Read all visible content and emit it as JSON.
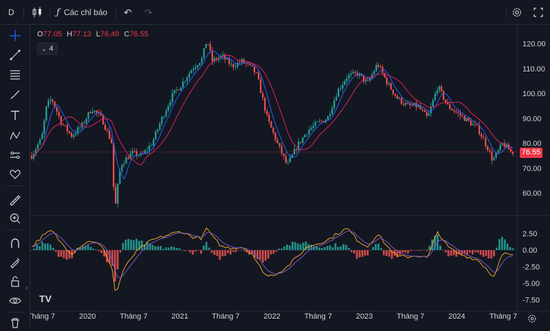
{
  "toolbar": {
    "interval": "D",
    "indicators_label": "Các chỉ báo"
  },
  "legend": {
    "o_label": "O",
    "o_value": "77.05",
    "h_label": "H",
    "h_value": "77.13",
    "l_label": "L",
    "l_value": "76.49",
    "c_label": "C",
    "c_value": "76.55",
    "indicator_count": "4"
  },
  "last_price": "76.55",
  "logo_text": "TV",
  "left_tools": [
    "crosshair-icon",
    "trendline-icon",
    "fib-icon",
    "brush-icon",
    "text-icon",
    "pattern-icon",
    "measure-icon",
    "heart-icon",
    "ruler-icon",
    "zoom-in-icon",
    "magnet-icon",
    "drawing-lock-icon",
    "lock-icon",
    "eye-icon",
    "trash-icon"
  ],
  "colors": {
    "up": "#26a69a",
    "down": "#ef5350",
    "ma_fast": "#2962ff",
    "ma_slow": "#e91e63",
    "macd": "#f5a623",
    "signal": "#7e57c2",
    "badge": "#f23645"
  },
  "chart_data": {
    "type": "candlestick",
    "price_axis": {
      "ticks": [
        "120.00",
        "110.00",
        "100.00",
        "90.00",
        "80.00",
        "70.00",
        "60.00"
      ],
      "tick_values": [
        120,
        110,
        100,
        90,
        80,
        70,
        60
      ],
      "range": [
        52,
        126
      ]
    },
    "macd_axis": {
      "ticks": [
        "2.50",
        "0.00",
        "-2.50",
        "-5.00",
        "-7.50"
      ],
      "tick_values": [
        2.5,
        0,
        -2.5,
        -5,
        -7.5
      ],
      "range": [
        -8.7,
        4.8
      ]
    },
    "time_axis": [
      "Tháng 7",
      "2020",
      "Tháng 7",
      "2021",
      "Tháng 7",
      "2022",
      "Tháng 7",
      "2023",
      "Tháng 7",
      "2024",
      "Tháng 7"
    ],
    "time_axis_pos": [
      0,
      0.143,
      0.286,
      0.429,
      0.571,
      0.714,
      0.857,
      1.0,
      1.143,
      1.286,
      1.43
    ],
    "price_path": [
      [
        0,
        75
      ],
      [
        0.1,
        82
      ],
      [
        0.15,
        95
      ],
      [
        0.2,
        98
      ],
      [
        0.3,
        88
      ],
      [
        0.4,
        83
      ],
      [
        0.5,
        87
      ],
      [
        0.6,
        94
      ],
      [
        0.7,
        90
      ],
      [
        0.8,
        80
      ],
      [
        0.82,
        60
      ],
      [
        0.84,
        55
      ],
      [
        0.87,
        67
      ],
      [
        0.9,
        72
      ],
      [
        1.0,
        76
      ],
      [
        1.1,
        75
      ],
      [
        1.2,
        80
      ],
      [
        1.3,
        90
      ],
      [
        1.4,
        99
      ],
      [
        1.5,
        104
      ],
      [
        1.6,
        110
      ],
      [
        1.7,
        114
      ],
      [
        1.75,
        122
      ],
      [
        1.8,
        113
      ],
      [
        1.9,
        115
      ],
      [
        2.0,
        111
      ],
      [
        2.1,
        113
      ],
      [
        2.2,
        110
      ],
      [
        2.25,
        107
      ],
      [
        2.35,
        90
      ],
      [
        2.45,
        80
      ],
      [
        2.55,
        71
      ],
      [
        2.65,
        79
      ],
      [
        2.75,
        85
      ],
      [
        2.85,
        88
      ],
      [
        2.95,
        90
      ],
      [
        3.05,
        101
      ],
      [
        3.15,
        107
      ],
      [
        3.25,
        108
      ],
      [
        3.35,
        104
      ],
      [
        3.45,
        112
      ],
      [
        3.55,
        104
      ],
      [
        3.65,
        98
      ],
      [
        3.75,
        95
      ],
      [
        3.85,
        95
      ],
      [
        3.95,
        90
      ],
      [
        4.05,
        103
      ],
      [
        4.15,
        95
      ],
      [
        4.25,
        92
      ],
      [
        4.35,
        89
      ],
      [
        4.45,
        86
      ],
      [
        4.55,
        78
      ],
      [
        4.6,
        73
      ],
      [
        4.7,
        80
      ],
      [
        4.78,
        76.5
      ]
    ],
    "x_range": [
      0,
      4.8
    ],
    "macd_path": [
      [
        0,
        0.5
      ],
      [
        0.1,
        2.0
      ],
      [
        0.2,
        3.0
      ],
      [
        0.3,
        1.0
      ],
      [
        0.4,
        -0.5
      ],
      [
        0.5,
        0.8
      ],
      [
        0.6,
        1.5
      ],
      [
        0.7,
        0.5
      ],
      [
        0.8,
        -2.5
      ],
      [
        0.84,
        -7.0
      ],
      [
        0.9,
        -3.5
      ],
      [
        1.0,
        -1.0
      ],
      [
        1.1,
        0.5
      ],
      [
        1.2,
        1.5
      ],
      [
        1.3,
        2.0
      ],
      [
        1.4,
        2.5
      ],
      [
        1.5,
        2.8
      ],
      [
        1.6,
        2.0
      ],
      [
        1.7,
        1.8
      ],
      [
        1.75,
        3.5
      ],
      [
        1.8,
        2.0
      ],
      [
        1.9,
        0.5
      ],
      [
        2.0,
        0.3
      ],
      [
        2.1,
        0.5
      ],
      [
        2.2,
        -0.5
      ],
      [
        2.25,
        -2.0
      ],
      [
        2.35,
        -4.0
      ],
      [
        2.45,
        -3.5
      ],
      [
        2.55,
        -2.5
      ],
      [
        2.65,
        -1.0
      ],
      [
        2.75,
        0.5
      ],
      [
        2.85,
        1.0
      ],
      [
        2.95,
        1.5
      ],
      [
        3.05,
        2.5
      ],
      [
        3.15,
        3.3
      ],
      [
        3.25,
        1.5
      ],
      [
        3.35,
        0.5
      ],
      [
        3.45,
        2.5
      ],
      [
        3.55,
        0.5
      ],
      [
        3.65,
        -1.0
      ],
      [
        3.75,
        -1.0
      ],
      [
        3.85,
        -0.8
      ],
      [
        3.95,
        -1.2
      ],
      [
        4.05,
        2.8
      ],
      [
        4.15,
        0.5
      ],
      [
        4.25,
        -0.5
      ],
      [
        4.35,
        -1.0
      ],
      [
        4.45,
        -1.5
      ],
      [
        4.55,
        -3.0
      ],
      [
        4.6,
        -4.2
      ],
      [
        4.7,
        -0.5
      ],
      [
        4.78,
        -0.8
      ]
    ]
  }
}
